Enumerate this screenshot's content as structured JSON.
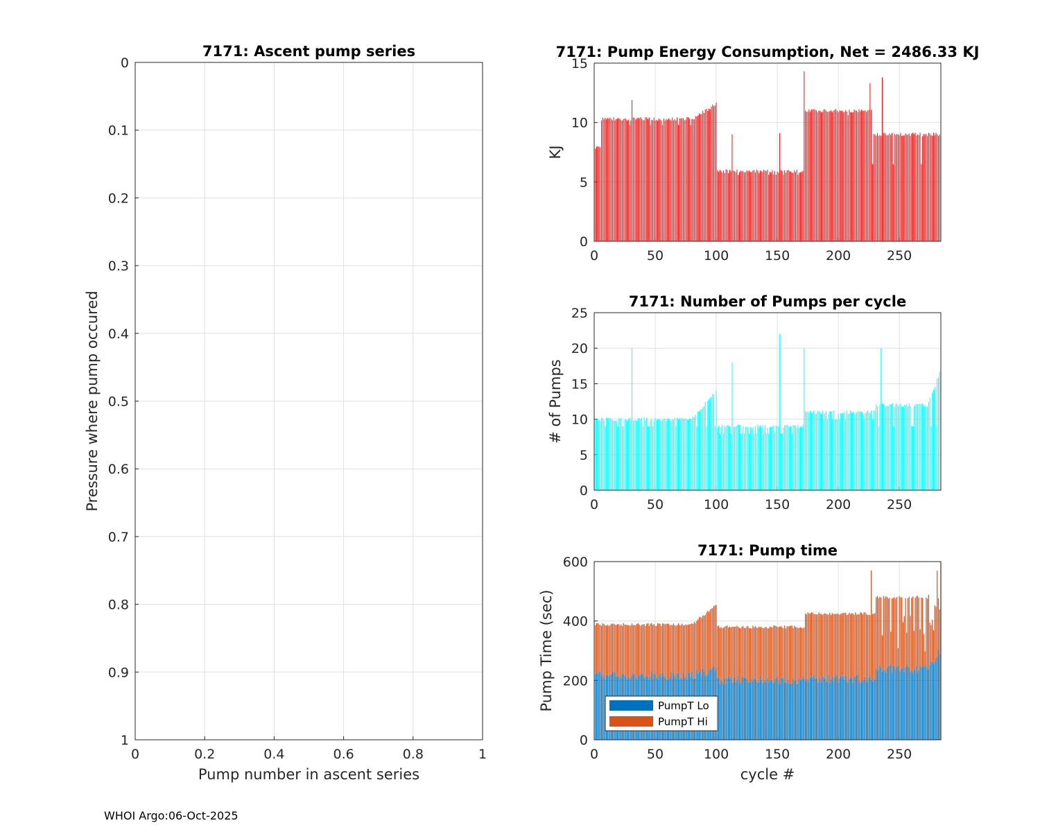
{
  "footer": "WHOI Argo:06-Oct-2025",
  "colors": {
    "energy": "#ff0000",
    "pumps": "#00ffff",
    "pump_lo": "#0072bd",
    "pump_hi": "#d95319",
    "grid": "#dfdfdf",
    "axis": "#262626"
  },
  "chart_data": [
    {
      "id": "ascent",
      "type": "scatter",
      "title": "7171: Ascent pump series",
      "xlabel": "Pump number in ascent series",
      "ylabel": "Pressure where pump occured",
      "xlim": [
        0,
        1
      ],
      "ylim": [
        0,
        1
      ],
      "y_reversed": true,
      "grid": true,
      "xticks": [
        "0",
        "0.2",
        "0.4",
        "0.6",
        "0.8",
        "1"
      ],
      "yticks": [
        "0",
        "0.1",
        "0.2",
        "0.3",
        "0.4",
        "0.5",
        "0.6",
        "0.7",
        "0.8",
        "0.9",
        "1"
      ],
      "series": []
    },
    {
      "id": "energy",
      "type": "bar",
      "title": "7171: Pump Energy Consumption,  Net = 2486.33 KJ",
      "xlabel": "",
      "ylabel": "KJ",
      "xlim": [
        0,
        284
      ],
      "ylim": [
        0,
        15
      ],
      "grid": true,
      "xticks": [
        "0",
        "50",
        "100",
        "150",
        "200",
        "250"
      ],
      "yticks": [
        "0",
        "5",
        "10",
        "15"
      ],
      "segments": [
        {
          "from": 1,
          "to": 5,
          "level": 8.0,
          "low": 7.8
        },
        {
          "from": 5,
          "to": 100,
          "level": 10.3,
          "rise_to": 11.6,
          "low": 9.8
        },
        {
          "from": 101,
          "to": 172,
          "level": 5.9,
          "low": 5.6
        },
        {
          "from": 172,
          "to": 227,
          "level": 11.0,
          "low": 10.6
        },
        {
          "from": 227,
          "to": 284,
          "level": 9.0,
          "low": 6.5
        }
      ],
      "spikes": [
        {
          "x": 31,
          "y": 11.9
        },
        {
          "x": 113,
          "y": 9.0
        },
        {
          "x": 152,
          "y": 9.1
        },
        {
          "x": 172,
          "y": 14.3
        },
        {
          "x": 226,
          "y": 13.3
        },
        {
          "x": 236,
          "y": 13.8
        }
      ]
    },
    {
      "id": "pumps",
      "type": "bar",
      "title": "7171: Number of Pumps per cycle",
      "xlabel": "",
      "ylabel": "# of Pumps",
      "xlim": [
        0,
        284
      ],
      "ylim": [
        0,
        25
      ],
      "grid": true,
      "xticks": [
        "0",
        "50",
        "100",
        "150",
        "200",
        "250"
      ],
      "yticks": [
        "0",
        "5",
        "10",
        "15",
        "20",
        "25"
      ],
      "segments": [
        {
          "from": 1,
          "to": 100,
          "level": 10,
          "low": 9,
          "rise_to": 14
        },
        {
          "from": 101,
          "to": 172,
          "level": 9,
          "low": 8
        },
        {
          "from": 172,
          "to": 230,
          "level": 11,
          "low": 10
        },
        {
          "from": 230,
          "to": 284,
          "level": 12,
          "low": 9,
          "rise_to": 17
        }
      ],
      "spikes": [
        {
          "x": 31,
          "y": 20
        },
        {
          "x": 113,
          "y": 18
        },
        {
          "x": 152,
          "y": 22
        },
        {
          "x": 172,
          "y": 20
        },
        {
          "x": 235,
          "y": 20
        }
      ]
    },
    {
      "id": "pumptime",
      "type": "bar",
      "stacked": true,
      "title": "7171: Pump time",
      "xlabel": "cycle #",
      "ylabel": "Pump Time (sec)",
      "xlim": [
        0,
        284
      ],
      "ylim": [
        0,
        600
      ],
      "grid": true,
      "xticks": [
        "0",
        "50",
        "100",
        "150",
        "200",
        "250"
      ],
      "yticks": [
        "0",
        "200",
        "400",
        "600"
      ],
      "legend": {
        "position": "bottom-left",
        "entries": [
          "PumpT Lo",
          "PumpT Hi"
        ]
      },
      "series": [
        {
          "name": "PumpT Lo",
          "segments": [
            {
              "from": 1,
              "to": 100,
              "level": 215,
              "rise_to": 240
            },
            {
              "from": 101,
              "to": 172,
              "level": 200
            },
            {
              "from": 172,
              "to": 230,
              "level": 205
            },
            {
              "from": 230,
              "to": 284,
              "level": 240,
              "rise_to": 300
            }
          ]
        },
        {
          "name": "PumpT Hi",
          "segments": [
            {
              "from": 1,
              "to": 100,
              "total": 388,
              "rise_to": 455
            },
            {
              "from": 101,
              "to": 172,
              "total": 380
            },
            {
              "from": 172,
              "to": 230,
              "total": 425
            },
            {
              "from": 230,
              "to": 284,
              "total": 480,
              "rise_to": 600
            }
          ]
        }
      ],
      "spikes": [
        {
          "x": 227,
          "y": 570
        }
      ]
    }
  ]
}
